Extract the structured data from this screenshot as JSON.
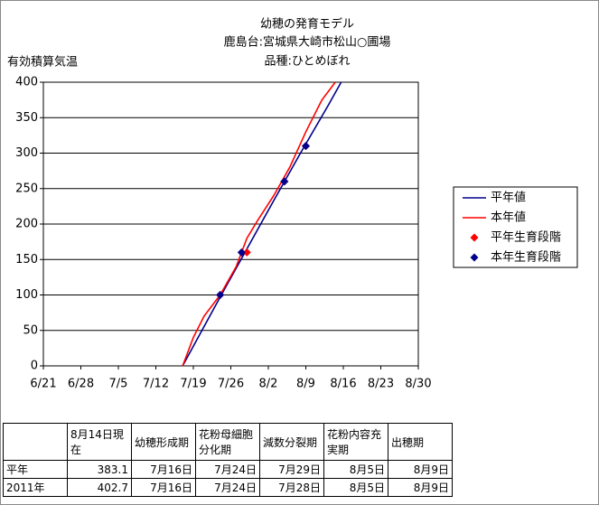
{
  "chart_data": {
    "type": "line",
    "title": [
      "幼穂の発育モデル",
      "鹿島台:宮城県大崎市松山○圃場",
      "品種:ひとめぼれ"
    ],
    "y_label": "有効積算気温",
    "xlim": [
      172,
      242
    ],
    "xticks": [
      {
        "value": 172,
        "label": "6/21"
      },
      {
        "value": 179,
        "label": "6/28"
      },
      {
        "value": 186,
        "label": "7/5"
      },
      {
        "value": 193,
        "label": "7/12"
      },
      {
        "value": 200,
        "label": "7/19"
      },
      {
        "value": 207,
        "label": "7/26"
      },
      {
        "value": 214,
        "label": "8/2"
      },
      {
        "value": 221,
        "label": "8/9"
      },
      {
        "value": 228,
        "label": "8/16"
      },
      {
        "value": 235,
        "label": "8/23"
      },
      {
        "value": 242,
        "label": "8/30"
      }
    ],
    "ylim": [
      0,
      400
    ],
    "yticks": [
      0,
      50,
      100,
      150,
      200,
      250,
      300,
      350,
      400
    ],
    "grid": true,
    "legend": "right",
    "series": [
      {
        "name": "平年値",
        "color": "#00008b",
        "kind": "line",
        "x": [
          198,
          205,
          210,
          215,
          220,
          225,
          227.6
        ],
        "values": [
          0,
          97,
          165,
          233,
          300,
          365,
          400
        ]
      },
      {
        "name": "本年値",
        "color": "#ff0000",
        "kind": "line",
        "x": [
          198,
          200,
          202,
          205,
          208,
          210,
          212,
          215,
          218,
          221,
          224,
          226.5
        ],
        "values": [
          0,
          40,
          70,
          100,
          140,
          180,
          205,
          240,
          280,
          330,
          375,
          400
        ]
      },
      {
        "name": "平年生育段階",
        "color": "#ff0000",
        "kind": "points",
        "x": [
          205,
          210,
          217,
          221
        ],
        "values": [
          100,
          160,
          260,
          310
        ]
      },
      {
        "name": "本年生育段階",
        "color": "#00008b",
        "kind": "points",
        "x": [
          205,
          209,
          217,
          221
        ],
        "values": [
          100,
          160,
          260,
          310
        ]
      }
    ]
  },
  "table": {
    "header": [
      "8月14日現在",
      "幼穂形成期",
      "花粉母細胞分化期",
      "減数分裂期",
      "花粉内容充実期",
      "出穂期"
    ],
    "rows": [
      [
        "平年",
        "383.1",
        "7月16日",
        "7月24日",
        "7月29日",
        "8月5日",
        "8月9日"
      ],
      [
        "2011年",
        "402.7",
        "7月16日",
        "7月24日",
        "7月28日",
        "8月5日",
        "8月9日"
      ]
    ]
  }
}
